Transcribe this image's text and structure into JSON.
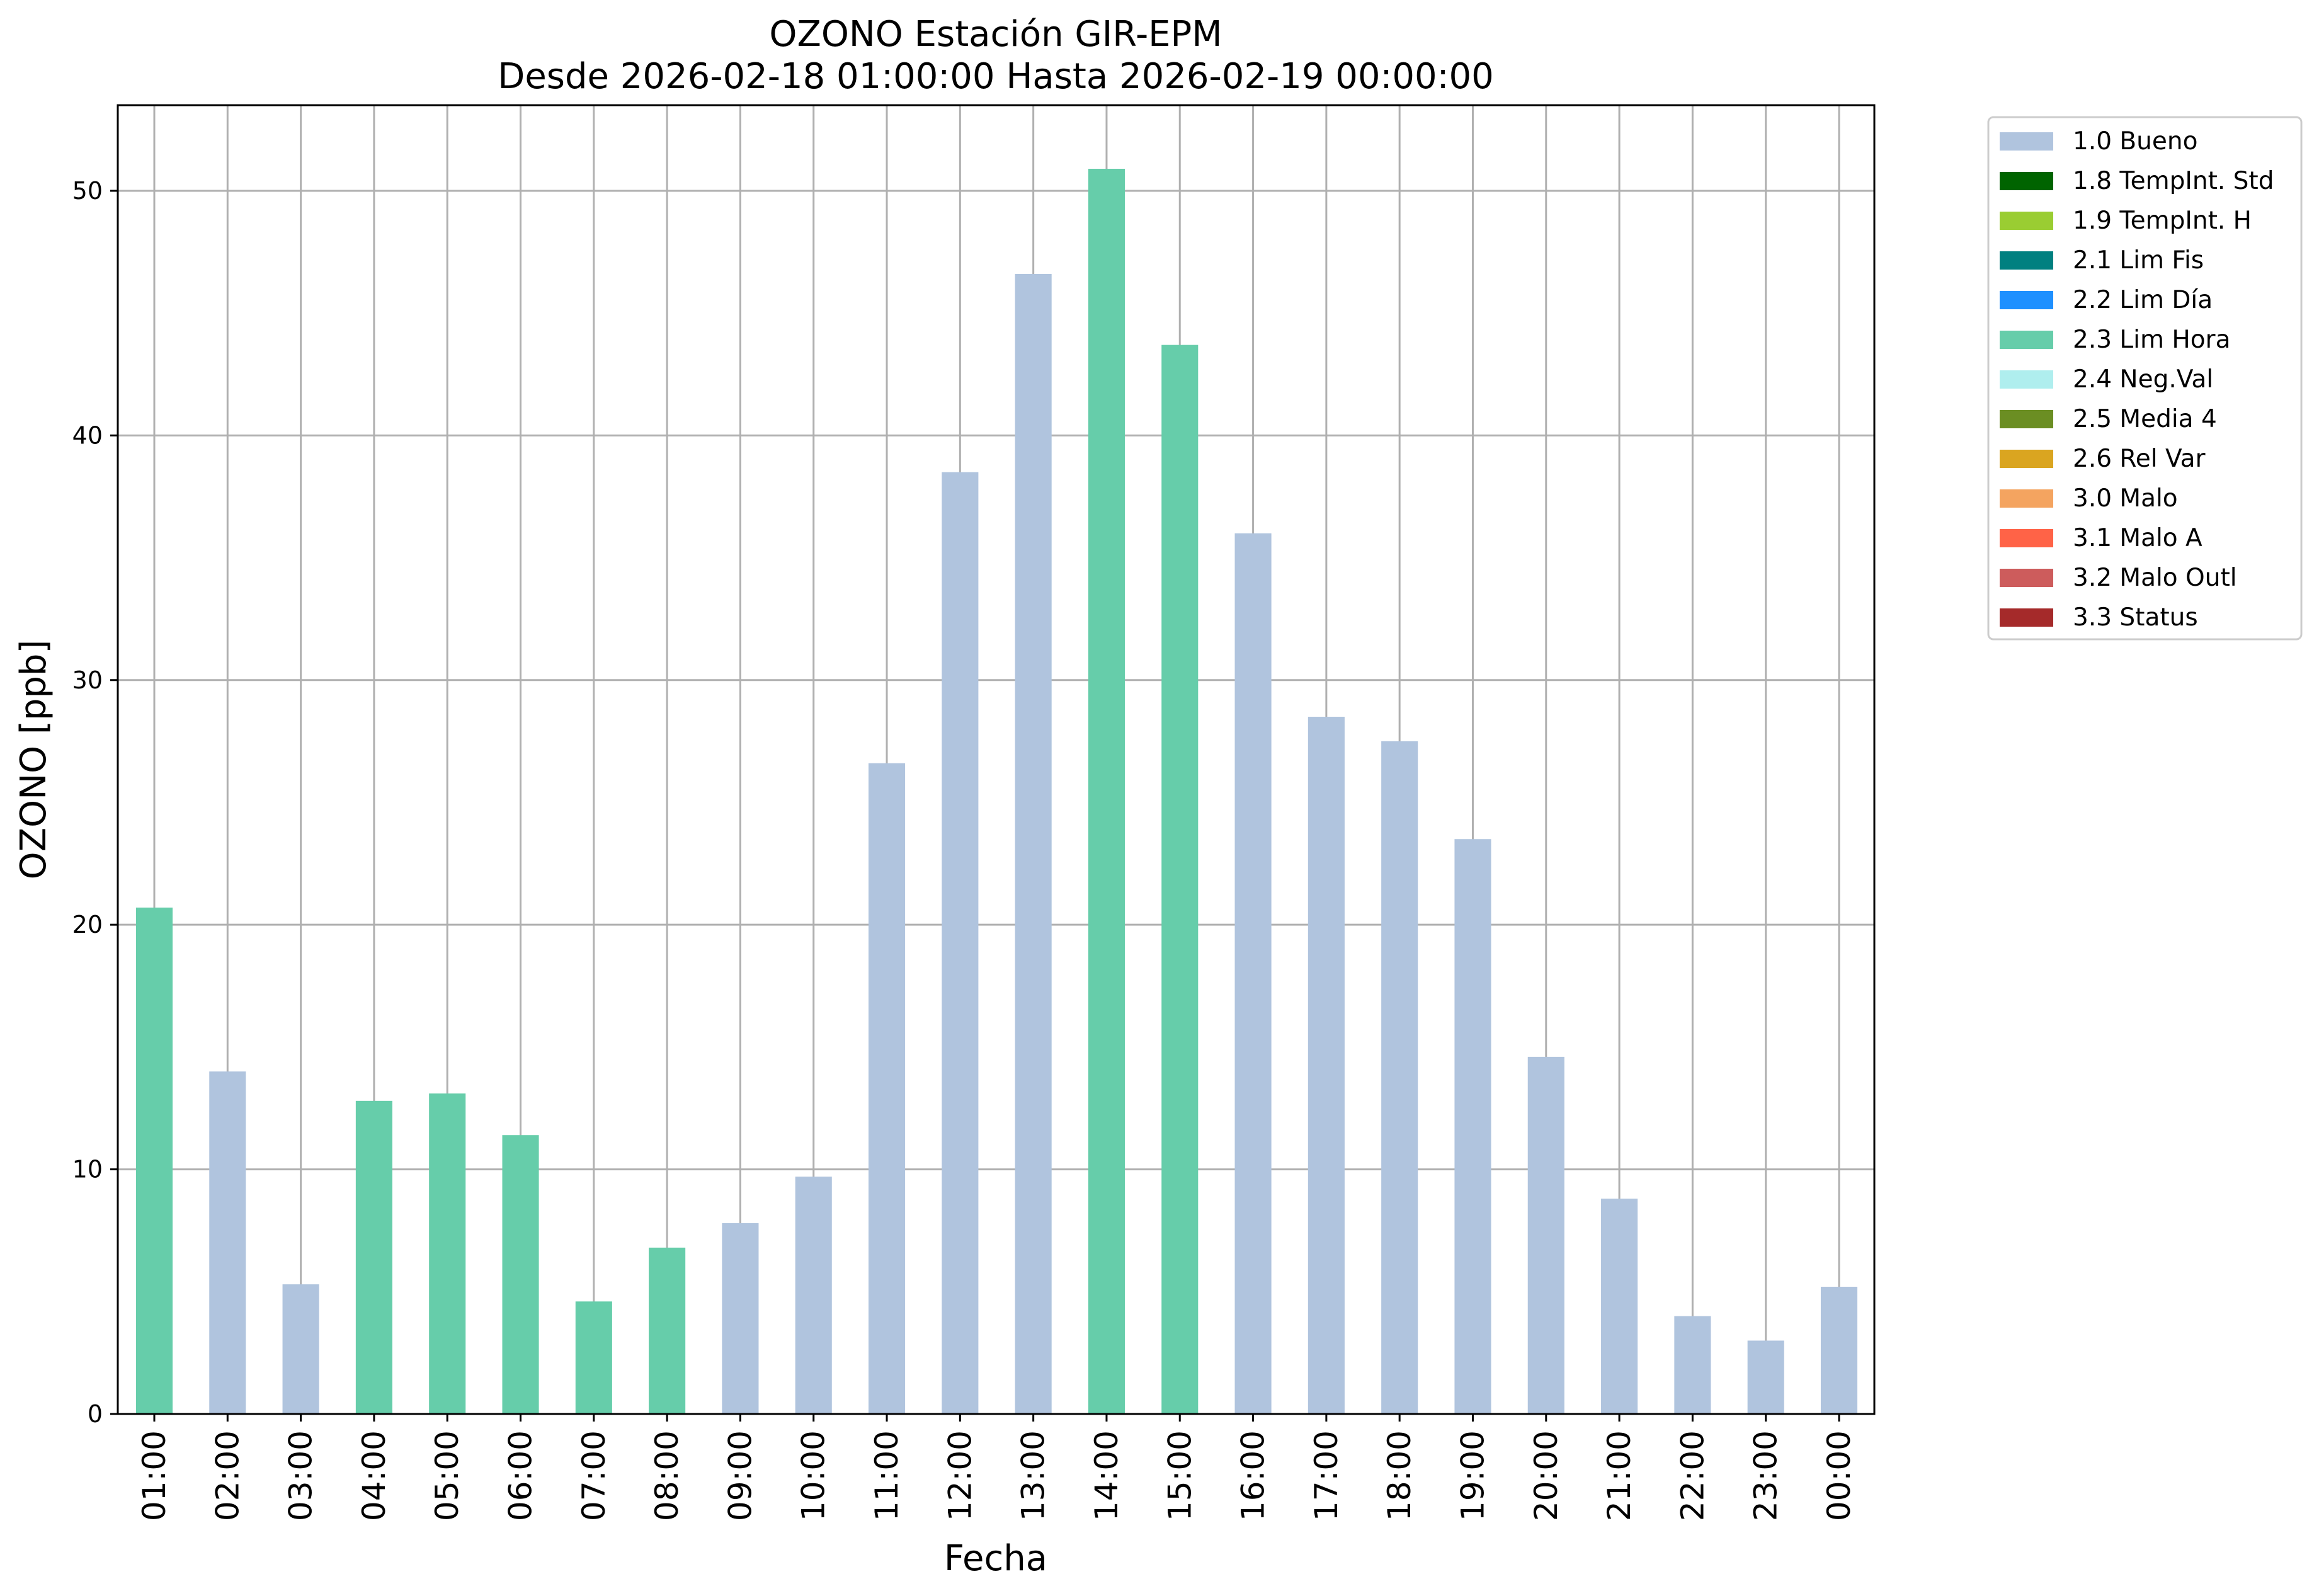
{
  "chart_data": {
    "type": "bar",
    "title": [
      "OZONO Estación GIR-EPM",
      "Desde 2026-02-18 01:00:00 Hasta 2026-02-19 00:00:00"
    ],
    "xlabel": "Fecha",
    "ylabel": "OZONO [ppb]",
    "ylim": [
      0,
      53.5
    ],
    "yticks": [
      "0",
      "10",
      "20",
      "30",
      "40",
      "50"
    ],
    "grid": true,
    "legend_position": "outside-top-right",
    "categories": [
      "01:00",
      "02:00",
      "03:00",
      "04:00",
      "05:00",
      "06:00",
      "07:00",
      "08:00",
      "09:00",
      "10:00",
      "11:00",
      "12:00",
      "13:00",
      "14:00",
      "15:00",
      "16:00",
      "17:00",
      "18:00",
      "19:00",
      "20:00",
      "21:00",
      "22:00",
      "23:00",
      "00:00"
    ],
    "values": [
      20.7,
      14.0,
      5.3,
      12.8,
      13.1,
      11.4,
      4.6,
      6.8,
      7.8,
      9.7,
      26.6,
      38.5,
      46.6,
      50.9,
      43.7,
      36.0,
      28.5,
      27.5,
      23.5,
      14.6,
      8.8,
      4.0,
      3.0,
      5.2
    ],
    "flags": [
      "2.3 Lim Hora",
      "1.0 Bueno",
      "1.0 Bueno",
      "2.3 Lim Hora",
      "2.3 Lim Hora",
      "2.3 Lim Hora",
      "2.3 Lim Hora",
      "2.3 Lim Hora",
      "1.0 Bueno",
      "1.0 Bueno",
      "1.0 Bueno",
      "1.0 Bueno",
      "1.0 Bueno",
      "2.3 Lim Hora",
      "2.3 Lim Hora",
      "1.0 Bueno",
      "1.0 Bueno",
      "1.0 Bueno",
      "1.0 Bueno",
      "1.0 Bueno",
      "1.0 Bueno",
      "1.0 Bueno",
      "1.0 Bueno",
      "1.0 Bueno"
    ],
    "legend": [
      {
        "label": "1.0 Bueno",
        "color": "#b0c4de"
      },
      {
        "label": "1.8 TempInt. Std",
        "color": "#006400"
      },
      {
        "label": "1.9 TempInt. H",
        "color": "#9acd32"
      },
      {
        "label": "2.1 Lim Fis",
        "color": "#008080"
      },
      {
        "label": "2.2 Lim Día",
        "color": "#1e90ff"
      },
      {
        "label": "2.3 Lim Hora",
        "color": "#66cdaa"
      },
      {
        "label": "2.4 Neg.Val",
        "color": "#afeeee"
      },
      {
        "label": "2.5 Media 4",
        "color": "#6b8e23"
      },
      {
        "label": "2.6 Rel Var",
        "color": "#daa520"
      },
      {
        "label": "3.0 Malo",
        "color": "#f4a460"
      },
      {
        "label": "3.1 Malo A",
        "color": "#ff6347"
      },
      {
        "label": "3.2 Malo Outl",
        "color": "#cd5c5c"
      },
      {
        "label": "3.3 Status",
        "color": "#a52a2a"
      }
    ]
  }
}
